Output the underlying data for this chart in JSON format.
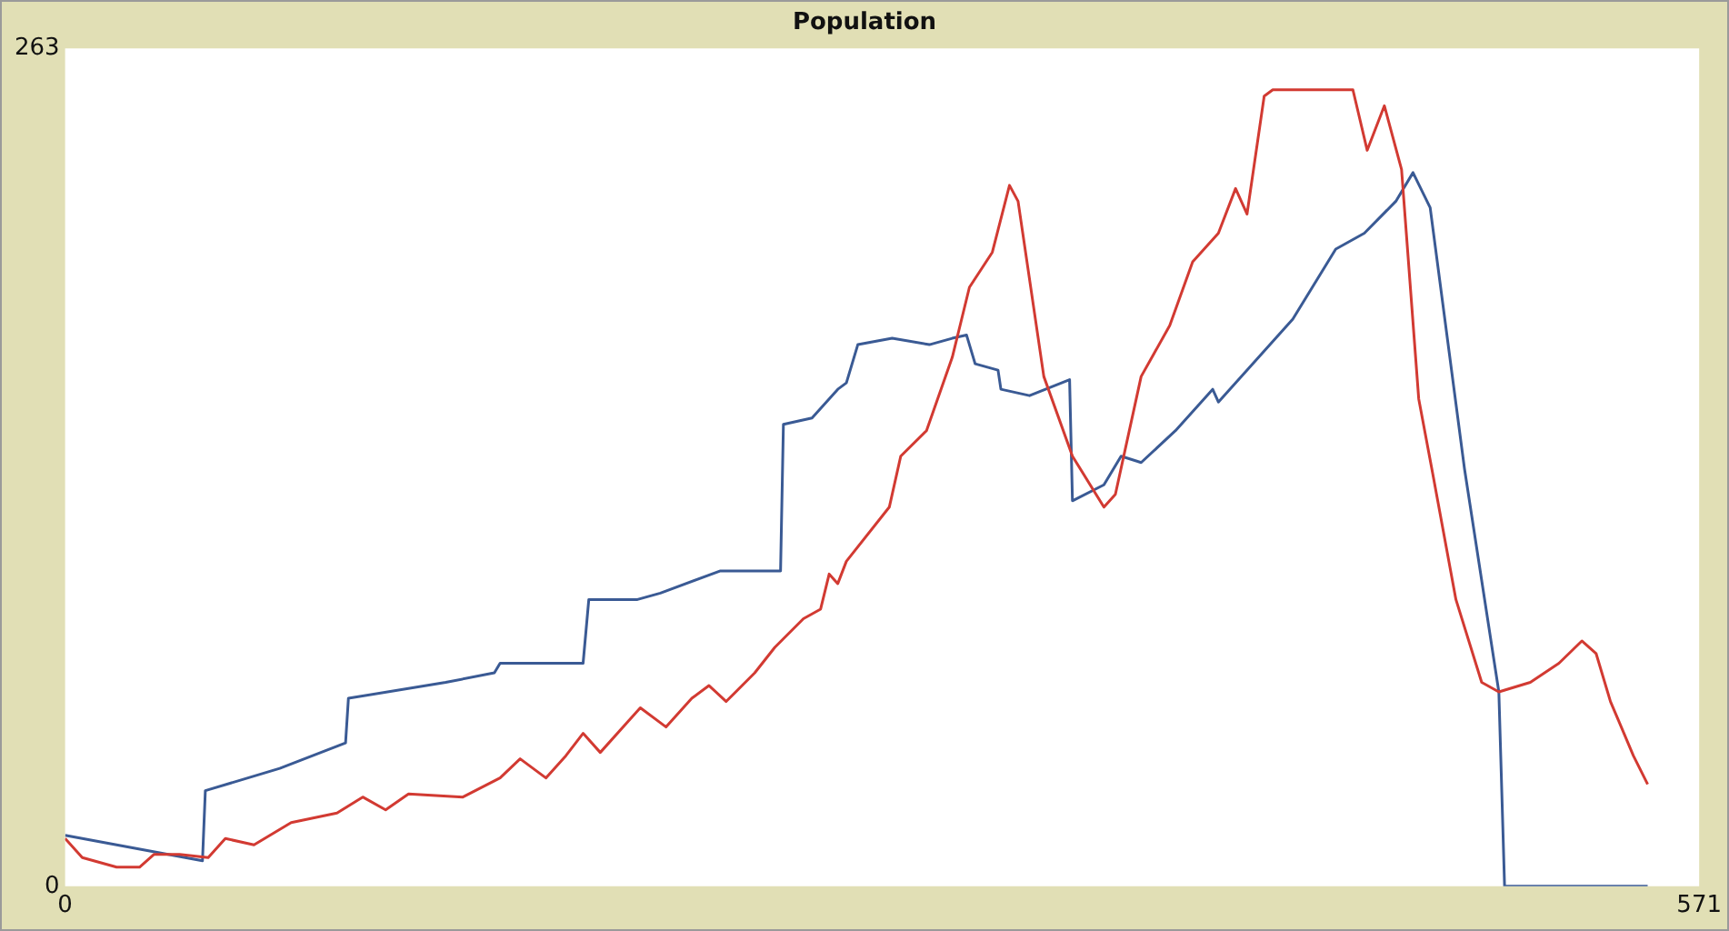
{
  "chart_data": {
    "type": "line",
    "title": "Population",
    "xlim": [
      0,
      571
    ],
    "ylim": [
      0,
      263
    ],
    "xticks": [
      0,
      571
    ],
    "yticks": [
      0,
      263
    ],
    "grid": false,
    "legend": false,
    "marker": "none",
    "line_style": "solid",
    "series": [
      {
        "color": "#d23a32",
        "x": [
          0,
          6,
          18,
          26,
          31,
          40,
          50,
          56,
          66,
          79,
          95,
          104,
          112,
          120,
          139,
          152,
          159,
          168,
          175,
          181,
          187,
          197,
          201,
          210,
          219,
          225,
          231,
          241,
          248,
          258,
          264,
          267,
          270,
          273,
          288,
          292,
          301,
          310,
          316,
          324,
          330,
          333,
          342,
          352,
          363,
          367,
          376,
          386,
          394,
          403,
          409,
          413,
          419,
          422,
          450,
          455,
          461,
          467,
          473,
          478,
          486,
          495,
          501,
          512,
          522,
          530,
          535,
          540,
          548,
          553
        ],
        "values": [
          15,
          9,
          6,
          6,
          10,
          10,
          9,
          15,
          13,
          20,
          23,
          28,
          24,
          29,
          28,
          34,
          40,
          34,
          41,
          48,
          42,
          52,
          56,
          50,
          59,
          63,
          58,
          67,
          75,
          84,
          87,
          98,
          95,
          102,
          119,
          135,
          143,
          166,
          188,
          199,
          220,
          215,
          160,
          135,
          119,
          123,
          160,
          176,
          196,
          205,
          219,
          211,
          248,
          250,
          250,
          231,
          245,
          225,
          153,
          129,
          90,
          64,
          61,
          64,
          70,
          77,
          73,
          58,
          41,
          32
        ]
      },
      {
        "color": "#3a5a94",
        "x": [
          0,
          48,
          49,
          75,
          98,
          99,
          133,
          150,
          152,
          181,
          183,
          200,
          208,
          229,
          250,
          251,
          261,
          270,
          273,
          277,
          289,
          302,
          310,
          315,
          318,
          326,
          327,
          337,
          351,
          352,
          363,
          369,
          376,
          388,
          401,
          403,
          429,
          444,
          454,
          465,
          471,
          477,
          489,
          501,
          503,
          553
        ],
        "values": [
          16,
          8,
          30,
          37,
          45,
          59,
          64,
          67,
          70,
          70,
          90,
          90,
          92,
          99,
          99,
          145,
          147,
          156,
          158,
          170,
          172,
          170,
          172,
          173,
          164,
          162,
          156,
          154,
          159,
          121,
          126,
          135,
          133,
          143,
          156,
          152,
          178,
          200,
          205,
          215,
          224,
          213,
          131,
          61,
          0,
          0
        ]
      }
    ]
  }
}
